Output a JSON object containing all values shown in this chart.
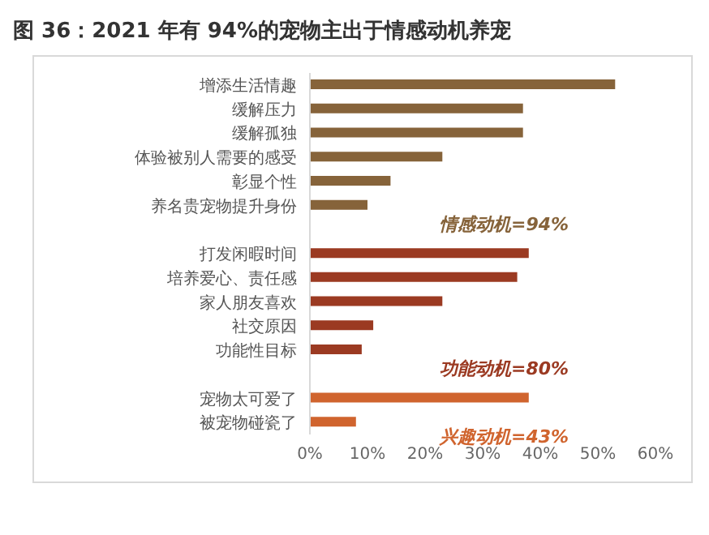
{
  "chart_data": {
    "type": "bar",
    "orientation": "horizontal",
    "title": "图 36：2021 年有 94%的宠物主出于情感动机养宠",
    "categories": [
      "增添生活情趣",
      "缓解压力",
      "缓解孤独",
      "体验被别人需要的感受",
      "彰显个性",
      "养名贵宠物提升身份",
      null,
      "打发闲暇时间",
      "培养爱心、责任感",
      "家人朋友喜欢",
      "社交原因",
      "功能性目标",
      null,
      "宠物太可爱了",
      "被宠物碰瓷了"
    ],
    "values": [
      53,
      37,
      37,
      23,
      14,
      10,
      null,
      38,
      36,
      23,
      11,
      9,
      null,
      38,
      8
    ],
    "colors": [
      "#86633a",
      "#86633a",
      "#86633a",
      "#86633a",
      "#86633a",
      "#86633a",
      "#86633a",
      "#9b3a22",
      "#9b3a22",
      "#9b3a22",
      "#9b3a22",
      "#9b3a22",
      "#9b3a22",
      "#d0642e",
      "#d0642e"
    ],
    "annotations": [
      "情感动机=94%",
      "功能动机=80%",
      "兴趣动机=43%"
    ],
    "xlim": [
      0,
      60
    ],
    "xticks": [
      {
        "value": 0,
        "label": "0%"
      },
      {
        "value": 10,
        "label": "10%"
      },
      {
        "value": 20,
        "label": "20%"
      },
      {
        "value": 30,
        "label": "30%"
      },
      {
        "value": 40,
        "label": "40%"
      },
      {
        "value": 50,
        "label": "50%"
      },
      {
        "value": 60,
        "label": "60%"
      }
    ],
    "grid": false,
    "legend": false
  }
}
